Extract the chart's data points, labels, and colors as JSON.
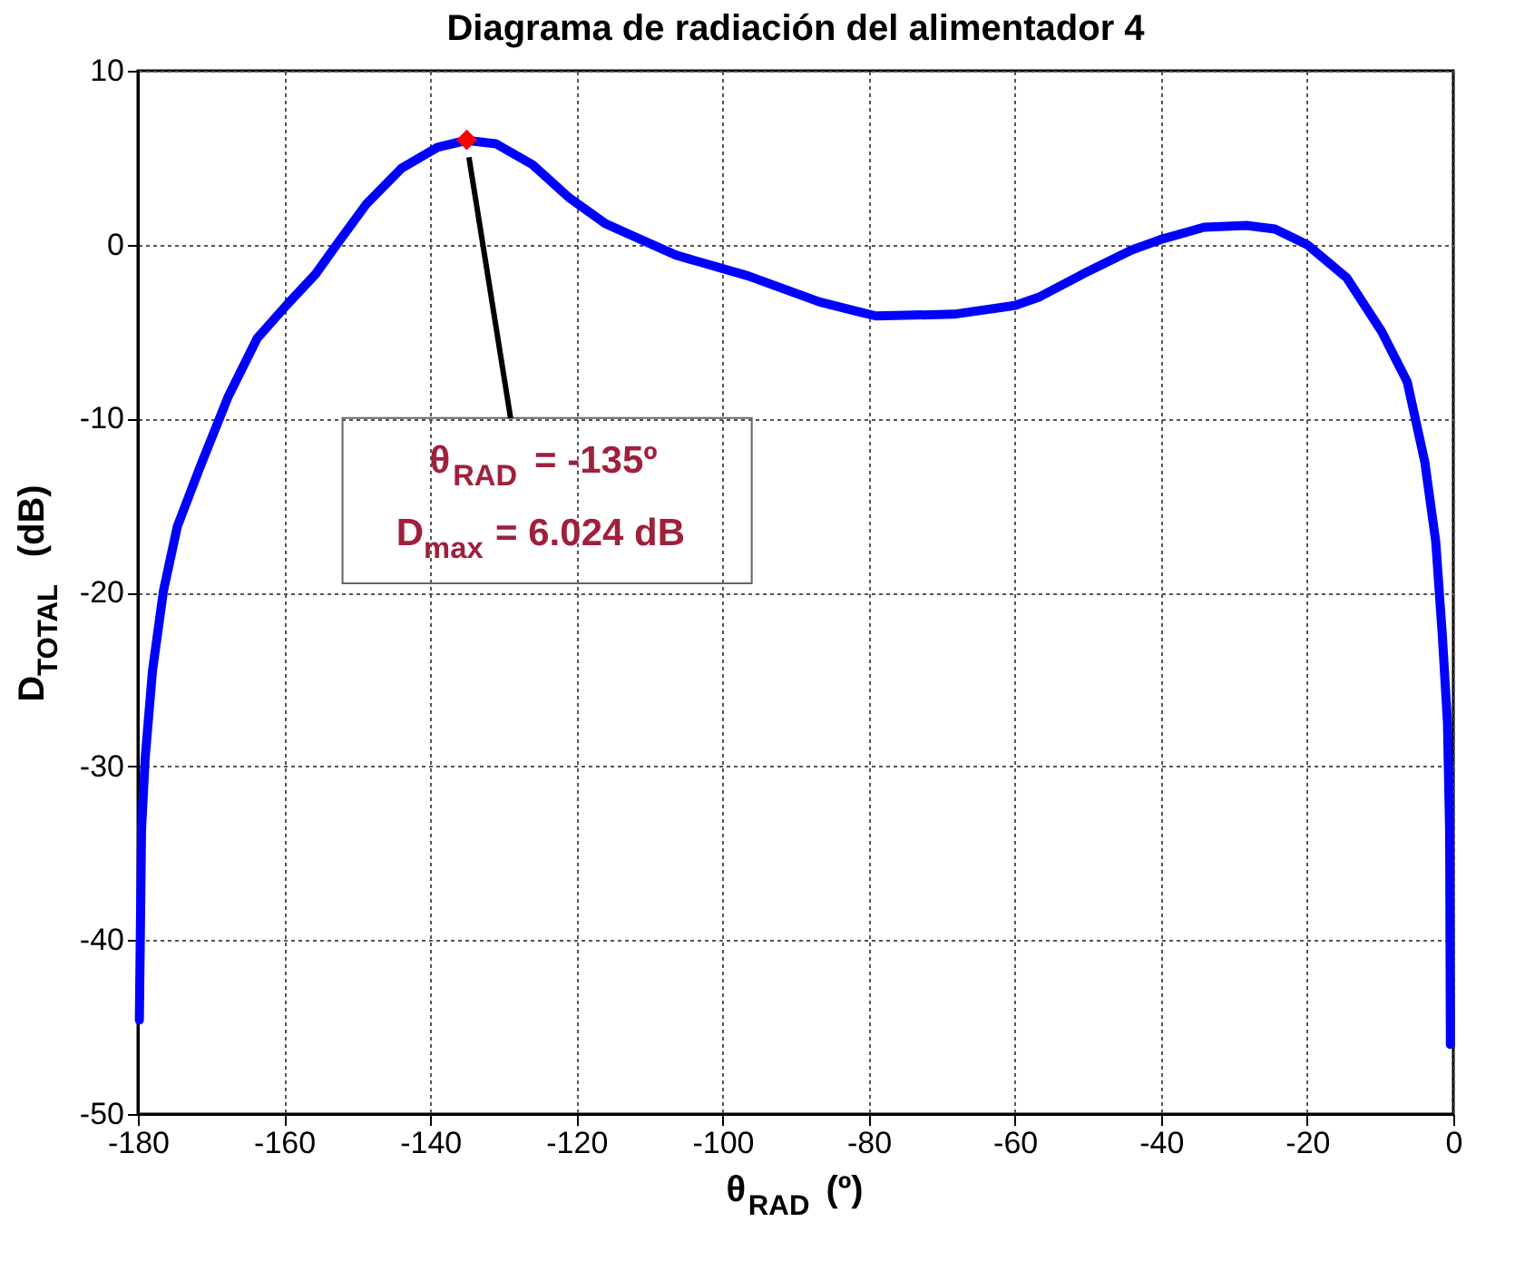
{
  "chart_data": {
    "type": "line",
    "title": "Diagrama de radiación del alimentador 4",
    "xlabel": "θ$_{RAD}$ (º)",
    "ylabel": "D$_{TOTAL}$ (dB)",
    "xlim": [
      -180,
      0
    ],
    "xticks": [
      -180,
      -160,
      -140,
      -120,
      -100,
      -80,
      -60,
      -40,
      -20,
      0
    ],
    "ylim": [
      -50,
      10
    ],
    "yticks": [
      -50,
      -40,
      -30,
      -20,
      -10,
      0,
      10
    ],
    "grid": true,
    "line_style": "solid",
    "series": [
      {
        "color": "#0000ff",
        "marker": "none",
        "x": [
          -179.8,
          -179.5,
          -179.0,
          -178.0,
          -176.5,
          -174.6,
          -171.6,
          -167.6,
          -163.7,
          -159.7,
          -155.7,
          -152.8,
          -148.8,
          -143.9,
          -139.0,
          -135.0,
          -131.0,
          -126.0,
          -121.0,
          -116.0,
          -106.4,
          -96.5,
          -86.7,
          -81.0,
          -79.0,
          -68.3,
          -60.0,
          -56.6,
          -49.8,
          -44.0,
          -40.0,
          -34.1,
          -28.3,
          -24.4,
          -20.0,
          -14.6,
          -9.8,
          -6.3,
          -3.9,
          -2.4,
          -1.5,
          -0.8,
          -0.5,
          -0.4
        ],
        "values": [
          -44.6,
          -33.6,
          -29.5,
          -24.5,
          -19.9,
          -16.2,
          -12.9,
          -8.7,
          -5.4,
          -3.5,
          -1.7,
          0,
          2.3,
          4.4,
          5.6,
          6.0,
          5.8,
          4.6,
          2.7,
          1.2,
          -0.6,
          -1.8,
          -3.3,
          -3.9,
          -4.1,
          -4.0,
          -3.5,
          -3.0,
          -1.5,
          -0.3,
          0.3,
          1.0,
          1.1,
          0.9,
          0,
          -1.9,
          -5.0,
          -7.9,
          -12.5,
          -17.1,
          -22.5,
          -27.5,
          -33.8,
          -46.0
        ]
      },
      {
        "type": "scatter",
        "color": "#ff0000",
        "marker": "diamond",
        "x": [
          -135
        ],
        "values": [
          6.024
        ]
      }
    ],
    "annotations": [
      {
        "text": "θ$_{RAD}$ = -135º",
        "x": -135,
        "y": 6.024
      },
      "D$_{max}$ = 6.024 dB"
    ]
  }
}
